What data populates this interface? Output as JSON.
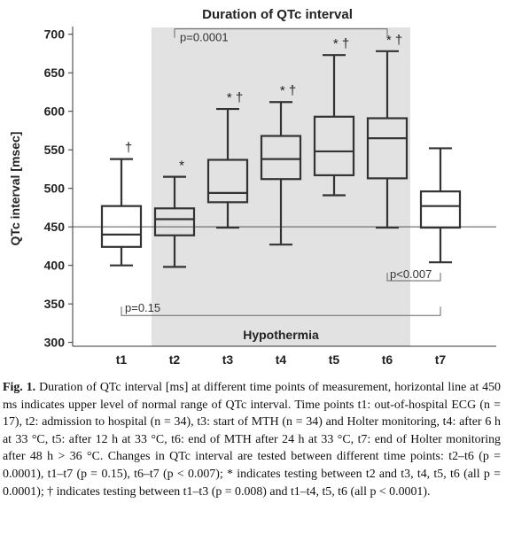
{
  "chart_data": {
    "type": "box",
    "title": "Duration of QTc interval",
    "ylabel": "QTc interval [msec]",
    "xlabel": "",
    "ylim": [
      295,
      710
    ],
    "yticks": [
      300,
      350,
      400,
      450,
      500,
      550,
      600,
      650,
      700
    ],
    "categories": [
      "t1",
      "t2",
      "t3",
      "t4",
      "t5",
      "t6",
      "t7"
    ],
    "boxes": [
      {
        "category": "t1",
        "min": 400,
        "q1": 424,
        "median": 440,
        "q3": 477,
        "max": 538,
        "marker": "†"
      },
      {
        "category": "t2",
        "min": 398,
        "q1": 439,
        "median": 460,
        "q3": 474,
        "max": 515,
        "marker": "*"
      },
      {
        "category": "t3",
        "min": 449,
        "q1": 482,
        "median": 494,
        "q3": 537,
        "max": 603,
        "marker": "* †"
      },
      {
        "category": "t4",
        "min": 427,
        "q1": 512,
        "median": 538,
        "q3": 568,
        "max": 612,
        "marker": "* †"
      },
      {
        "category": "t5",
        "min": 491,
        "q1": 517,
        "median": 548,
        "q3": 593,
        "max": 673,
        "marker": "* †"
      },
      {
        "category": "t6",
        "min": 449,
        "q1": 513,
        "median": 565,
        "q3": 591,
        "max": 678,
        "marker": "* †"
      },
      {
        "category": "t7",
        "min": 404,
        "q1": 449,
        "median": 477,
        "q3": 496,
        "max": 552,
        "marker": ""
      }
    ],
    "reference_line": 450,
    "shaded_region": {
      "label": "Hypothermia",
      "from": "t2",
      "to": "t6"
    },
    "brackets": [
      {
        "label": "p=0.0001",
        "from": "t2",
        "to": "t6"
      },
      {
        "label": "p=0.15",
        "from": "t1",
        "to": "t7"
      },
      {
        "label": "p<0.007",
        "from": "t6",
        "to": "t7"
      }
    ]
  },
  "caption": {
    "label": "Fig. 1.",
    "text": "Duration of QTc interval [ms] at different time points of measurement, horizontal line at 450 ms indicates upper level of normal range of QTc interval. Time points t1: out-of-hospital ECG (n = 17), t2: admission to hospital (n = 34), t3: start of MTH (n = 34) and Holter monitoring, t4: after 6 h at 33 °C, t5: after 12 h at 33 °C, t6: end of MTH after 24 h at 33 °C, t7: end of Holter monitoring after 48 h > 36 °C. Changes in QTc interval are tested between different time points: t2–t6 (p = 0.0001), t1–t7 (p = 0.15), t6–t7 (p < 0.007); * indicates testing between t2 and t3, t4, t5, t6 (all p = 0.0001); † indicates testing between t1–t3 (p = 0.008) and t1–t4, t5, t6 (all p < 0.0001)."
  }
}
